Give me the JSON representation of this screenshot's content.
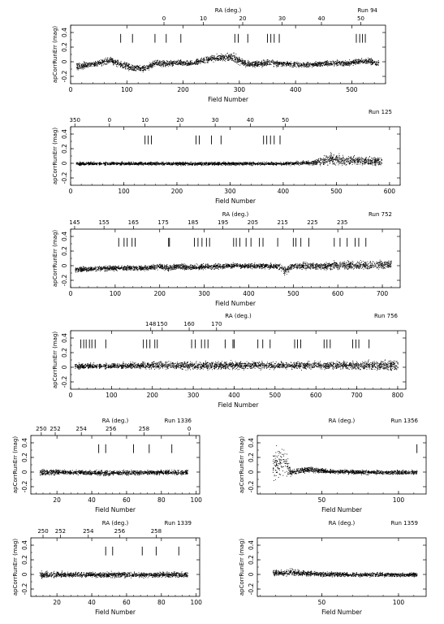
{
  "chart_data": [
    {
      "type": "scatter",
      "run_label": "Run 94",
      "top_axis_label": "RA (deg.)",
      "xlabel": "Field Number",
      "ylabel": "apCorrRunErr (mag)",
      "xlim": [
        0,
        560
      ],
      "ylim": [
        -0.3,
        0.5
      ],
      "x_ticks": [
        0,
        100,
        200,
        300,
        400,
        500
      ],
      "x_tick_labels": [
        "0",
        "100",
        "200",
        "300",
        "400",
        "500"
      ],
      "y_ticks": [
        -0.2,
        0,
        0.2,
        0.4
      ],
      "y_tick_labels": [
        "-0.2",
        "0",
        "0.2",
        "0.4"
      ],
      "ra_ticks": [
        {
          "field": 166,
          "label": "0"
        },
        {
          "field": 236,
          "label": "10"
        },
        {
          "field": 306,
          "label": "20"
        },
        {
          "field": 376,
          "label": "30"
        },
        {
          "field": 446,
          "label": "40"
        },
        {
          "field": 516,
          "label": "50"
        }
      ],
      "marker_fields": [
        89,
        110,
        150,
        170,
        196,
        292,
        298,
        315,
        350,
        356,
        362,
        371,
        508,
        514,
        519,
        524
      ],
      "series": [
        {
          "x": [
            10,
            30,
            50,
            70,
            90,
            110,
            130,
            150,
            170,
            190,
            210,
            230,
            250,
            270,
            290,
            310,
            330,
            350,
            370,
            390,
            410,
            430,
            450,
            470,
            490,
            510,
            530,
            548
          ],
          "y": [
            -0.06,
            -0.04,
            -0.02,
            0.03,
            -0.04,
            -0.08,
            -0.09,
            -0.02,
            -0.02,
            -0.01,
            -0.02,
            0.01,
            0.05,
            0.06,
            0.06,
            -0.02,
            -0.03,
            -0.01,
            -0.02,
            -0.03,
            -0.04,
            -0.03,
            -0.02,
            -0.01,
            -0.02,
            0.01,
            0.01,
            -0.02
          ],
          "spread": [
            0.08,
            0.06,
            0.06,
            0.06,
            0.07,
            0.07,
            0.06,
            0.06,
            0.06,
            0.05,
            0.05,
            0.06,
            0.06,
            0.07,
            0.08,
            0.06,
            0.06,
            0.06,
            0.06,
            0.05,
            0.05,
            0.05,
            0.05,
            0.05,
            0.05,
            0.06,
            0.06,
            0.06
          ]
        }
      ]
    },
    {
      "type": "scatter",
      "run_label": "Run 125",
      "top_axis_label": "",
      "xlabel": "Field Number",
      "ylabel": "apCorrRunErr (mag)",
      "xlim": [
        0,
        620
      ],
      "ylim": [
        -0.3,
        0.5
      ],
      "x_ticks": [
        0,
        100,
        200,
        300,
        400,
        500,
        600
      ],
      "x_tick_labels": [
        "0",
        "100",
        "200",
        "300",
        "400",
        "500",
        "600"
      ],
      "y_ticks": [
        -0.2,
        0,
        0.2,
        0.4
      ],
      "y_tick_labels": [
        "-0.2",
        "0",
        "0.2",
        "0.4"
      ],
      "ra_ticks": [
        {
          "field": 8,
          "label": "350"
        },
        {
          "field": 73,
          "label": "0"
        },
        {
          "field": 140,
          "label": "10"
        },
        {
          "field": 206,
          "label": "20"
        },
        {
          "field": 272,
          "label": "30"
        },
        {
          "field": 338,
          "label": "40"
        },
        {
          "field": 404,
          "label": "50"
        }
      ],
      "marker_fields": [
        140,
        146,
        152,
        236,
        242,
        265,
        283,
        363,
        369,
        376,
        383,
        394
      ],
      "series": [
        {
          "x": [
            10,
            50,
            100,
            150,
            200,
            250,
            300,
            350,
            400,
            450,
            470,
            490,
            510,
            530,
            550,
            570,
            585
          ],
          "y": [
            0.0,
            0.0,
            0.0,
            0.0,
            0.0,
            0.0,
            0.0,
            0.0,
            0.0,
            0.01,
            0.03,
            0.06,
            0.05,
            0.04,
            0.04,
            0.03,
            0.03
          ],
          "spread": [
            0.03,
            0.03,
            0.03,
            0.03,
            0.03,
            0.03,
            0.03,
            0.03,
            0.03,
            0.04,
            0.08,
            0.12,
            0.1,
            0.08,
            0.08,
            0.08,
            0.08
          ]
        }
      ]
    },
    {
      "type": "scatter",
      "run_label": "Run 752",
      "top_axis_label": "RA (deg.)",
      "xlabel": "Field Number",
      "ylabel": "apCorrRunErr (mag)",
      "xlim": [
        0,
        740
      ],
      "ylim": [
        -0.3,
        0.5
      ],
      "x_ticks": [
        0,
        100,
        200,
        300,
        400,
        500,
        600,
        700
      ],
      "x_tick_labels": [
        "0",
        "100",
        "200",
        "300",
        "400",
        "500",
        "600",
        "700"
      ],
      "y_ticks": [
        -0.2,
        0,
        0.2,
        0.4
      ],
      "y_tick_labels": [
        "-0.2",
        "0",
        "0.2",
        "0.4"
      ],
      "ra_ticks": [
        {
          "field": 9,
          "label": "145"
        },
        {
          "field": 75,
          "label": "155"
        },
        {
          "field": 141,
          "label": "165"
        },
        {
          "field": 208,
          "label": "175"
        },
        {
          "field": 275,
          "label": "185"
        },
        {
          "field": 342,
          "label": "195"
        },
        {
          "field": 409,
          "label": "205"
        },
        {
          "field": 476,
          "label": "215"
        },
        {
          "field": 543,
          "label": "225"
        },
        {
          "field": 610,
          "label": "235"
        }
      ],
      "marker_fields": [
        108,
        120,
        127,
        138,
        145,
        220,
        222,
        278,
        286,
        295,
        305,
        312,
        366,
        372,
        380,
        394,
        405,
        424,
        432,
        465,
        500,
        506,
        517,
        535,
        592,
        605,
        621,
        639,
        647,
        663
      ],
      "series": [
        {
          "x": [
            10,
            50,
            100,
            150,
            200,
            220,
            240,
            260,
            300,
            350,
            400,
            450,
            470,
            480,
            500,
            550,
            600,
            650,
            700,
            720
          ],
          "y": [
            -0.05,
            -0.04,
            -0.03,
            -0.03,
            -0.01,
            -0.03,
            0.0,
            -0.02,
            -0.01,
            0.0,
            0.0,
            0.0,
            -0.01,
            -0.06,
            0.0,
            0.0,
            0.01,
            0.01,
            0.02,
            0.02
          ],
          "spread": [
            0.05,
            0.05,
            0.05,
            0.05,
            0.05,
            0.06,
            0.05,
            0.05,
            0.05,
            0.05,
            0.05,
            0.05,
            0.05,
            0.08,
            0.06,
            0.07,
            0.08,
            0.08,
            0.08,
            0.08
          ]
        }
      ]
    },
    {
      "type": "scatter",
      "run_label": "Run 756",
      "top_axis_label": "RA (deg.)",
      "xlabel": "Field Number",
      "ylabel": "apCorrRunErr (mag)",
      "xlim": [
        0,
        820
      ],
      "ylim": [
        -0.3,
        0.5
      ],
      "x_ticks": [
        0,
        100,
        200,
        300,
        400,
        500,
        600,
        700,
        800
      ],
      "x_tick_labels": [
        "0",
        "100",
        "200",
        "300",
        "400",
        "500",
        "600",
        "700",
        "800"
      ],
      "y_ticks": [
        -0.2,
        0,
        0.2,
        0.4
      ],
      "y_tick_labels": [
        "-0.2",
        "0",
        "0.2",
        "0.4"
      ],
      "ra_ticks": [
        {
          "field": 196,
          "label": "148"
        },
        {
          "field": 224,
          "label": "150"
        },
        {
          "field": 290,
          "label": "160"
        },
        {
          "field": 357,
          "label": "170"
        }
      ],
      "marker_fields": [
        25,
        32,
        38,
        46,
        52,
        60,
        86,
        178,
        186,
        194,
        206,
        212,
        296,
        305,
        320,
        328,
        336,
        378,
        397,
        400,
        458,
        470,
        488,
        548,
        555,
        563,
        620,
        627,
        635,
        690,
        698,
        705,
        730
      ],
      "series": [
        {
          "x": [
            10,
            100,
            200,
            300,
            400,
            500,
            600,
            700,
            800
          ],
          "y": [
            0.02,
            0.02,
            0.03,
            0.03,
            0.03,
            0.03,
            0.03,
            0.03,
            0.03
          ],
          "spread": [
            0.05,
            0.05,
            0.07,
            0.07,
            0.07,
            0.07,
            0.07,
            0.08,
            0.1
          ]
        }
      ]
    },
    {
      "type": "scatter",
      "run_label": "Run 1336",
      "top_axis_label": "RA (deg.)",
      "xlabel": "Field Number",
      "ylabel": "apCorrRunErr (mag)",
      "xlim": [
        5,
        102
      ],
      "ylim": [
        -0.3,
        0.5
      ],
      "x_ticks": [
        20,
        40,
        60,
        80,
        100
      ],
      "x_tick_labels": [
        "20",
        "40",
        "60",
        "80",
        "100"
      ],
      "y_ticks": [
        -0.2,
        0,
        0.2,
        0.4
      ],
      "y_tick_labels": [
        "-0.2",
        "0",
        "0.2",
        "0.4"
      ],
      "ra_ticks": [
        {
          "field": 11,
          "label": "250"
        },
        {
          "field": 19,
          "label": "252"
        },
        {
          "field": 34,
          "label": "254"
        },
        {
          "field": 51,
          "label": "256"
        },
        {
          "field": 70,
          "label": "258"
        },
        {
          "field": 96,
          "label": "0"
        }
      ],
      "marker_fields": [
        44,
        48,
        64,
        73,
        86
      ],
      "series": [
        {
          "x": [
            10,
            30,
            50,
            70,
            95
          ],
          "y": [
            0.0,
            0.0,
            -0.01,
            0.0,
            0.0
          ],
          "spread": [
            0.06,
            0.04,
            0.05,
            0.04,
            0.05
          ]
        }
      ]
    },
    {
      "type": "scatter",
      "run_label": "Run 1356",
      "top_axis_label": "RA (deg.)",
      "xlabel": "Field Number",
      "ylabel": "apCorrRunErr (mag)",
      "xlim": [
        8,
        118
      ],
      "ylim": [
        -0.3,
        0.5
      ],
      "x_ticks": [
        50,
        100
      ],
      "x_tick_labels": [
        "50",
        "100"
      ],
      "y_ticks": [
        -0.2,
        0,
        0.2,
        0.4
      ],
      "y_tick_labels": [
        "-0.2",
        "0",
        "0.2",
        "0.4"
      ],
      "ra_ticks": [],
      "marker_fields": [
        112
      ],
      "series": [
        {
          "x": [
            18,
            22,
            26,
            30,
            40,
            50,
            60,
            80,
            100,
            112
          ],
          "y": [
            0.08,
            0.12,
            0.1,
            0.0,
            0.04,
            0.02,
            0.01,
            0.0,
            0.0,
            0.0
          ],
          "spread": [
            0.3,
            0.35,
            0.3,
            0.05,
            0.06,
            0.04,
            0.04,
            0.04,
            0.04,
            0.04
          ]
        }
      ]
    },
    {
      "type": "scatter",
      "run_label": "Run 1339",
      "top_axis_label": "RA (deg.)",
      "xlabel": "Field Number",
      "ylabel": "apCorrRunErr (mag)",
      "xlim": [
        5,
        102
      ],
      "ylim": [
        -0.3,
        0.5
      ],
      "x_ticks": [
        20,
        40,
        60,
        80,
        100
      ],
      "x_tick_labels": [
        "20",
        "40",
        "60",
        "80",
        "100"
      ],
      "y_ticks": [
        -0.2,
        0,
        0.2,
        0.4
      ],
      "y_tick_labels": [
        "-0.2",
        "0",
        "0.2",
        "0.4"
      ],
      "ra_ticks": [
        {
          "field": 12,
          "label": "250"
        },
        {
          "field": 22,
          "label": "252"
        },
        {
          "field": 38,
          "label": "254"
        },
        {
          "field": 56,
          "label": "256"
        },
        {
          "field": 77,
          "label": "258"
        }
      ],
      "marker_fields": [
        48,
        52,
        69,
        77,
        90
      ],
      "series": [
        {
          "x": [
            10,
            30,
            50,
            70,
            95
          ],
          "y": [
            0.0,
            0.0,
            0.0,
            0.0,
            0.0
          ],
          "spread": [
            0.06,
            0.05,
            0.05,
            0.05,
            0.05
          ]
        }
      ]
    },
    {
      "type": "scatter",
      "run_label": "Run 1359",
      "top_axis_label": "RA (deg.)",
      "xlabel": "Field Number",
      "ylabel": "apCorrRunErr (mag)",
      "xlim": [
        8,
        118
      ],
      "ylim": [
        -0.3,
        0.5
      ],
      "x_ticks": [
        50,
        100
      ],
      "x_tick_labels": [
        "50",
        "100"
      ],
      "y_ticks": [
        -0.2,
        0,
        0.2,
        0.4
      ],
      "y_tick_labels": [
        "-0.2",
        "0",
        "0.2",
        "0.4"
      ],
      "ra_ticks": [],
      "marker_fields": [],
      "series": [
        {
          "x": [
            18,
            25,
            30,
            35,
            50,
            70,
            90,
            112
          ],
          "y": [
            0.03,
            0.02,
            0.04,
            0.02,
            0.01,
            0.0,
            0.0,
            0.0
          ],
          "spread": [
            0.06,
            0.05,
            0.08,
            0.05,
            0.04,
            0.04,
            0.04,
            0.04
          ]
        }
      ]
    }
  ]
}
